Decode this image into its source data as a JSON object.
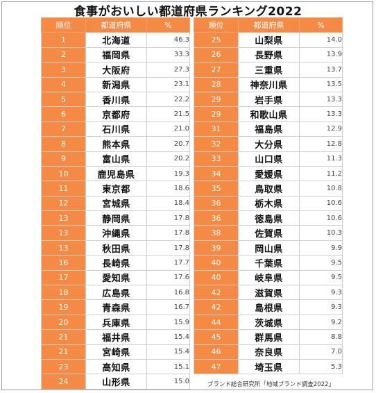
{
  "title": "食事がおいしい都道府県ランキング2022",
  "headers": {
    "rank": "順位",
    "prefecture": "都道府県",
    "percent": "%"
  },
  "left_rows": [
    {
      "rank": "1",
      "pref": "北海道",
      "pct": "46.3"
    },
    {
      "rank": "2",
      "pref": "福岡県",
      "pct": "33.3"
    },
    {
      "rank": "3",
      "pref": "大阪府",
      "pct": "27.3"
    },
    {
      "rank": "4",
      "pref": "新潟県",
      "pct": "23.1"
    },
    {
      "rank": "5",
      "pref": "香川県",
      "pct": "22.2"
    },
    {
      "rank": "6",
      "pref": "京都府",
      "pct": "21.5"
    },
    {
      "rank": "7",
      "pref": "石川県",
      "pct": "21.0"
    },
    {
      "rank": "8",
      "pref": "熊本県",
      "pct": "20.7"
    },
    {
      "rank": "9",
      "pref": "富山県",
      "pct": "20.2"
    },
    {
      "rank": "10",
      "pref": "鹿児島県",
      "pct": "19.3"
    },
    {
      "rank": "11",
      "pref": "東京都",
      "pct": "18.6"
    },
    {
      "rank": "12",
      "pref": "宮城県",
      "pct": "18.4"
    },
    {
      "rank": "13",
      "pref": "静岡県",
      "pct": "17.8"
    },
    {
      "rank": "13",
      "pref": "沖縄県",
      "pct": "17.8"
    },
    {
      "rank": "13",
      "pref": "秋田県",
      "pct": "17.8"
    },
    {
      "rank": "16",
      "pref": "長崎県",
      "pct": "17.7"
    },
    {
      "rank": "17",
      "pref": "愛知県",
      "pct": "17.6"
    },
    {
      "rank": "18",
      "pref": "広島県",
      "pct": "16.8"
    },
    {
      "rank": "19",
      "pref": "青森県",
      "pct": "16.7"
    },
    {
      "rank": "20",
      "pref": "兵庫県",
      "pct": "15.9"
    },
    {
      "rank": "21",
      "pref": "福井県",
      "pct": "15.4"
    },
    {
      "rank": "21",
      "pref": "宮崎県",
      "pct": "15.4"
    },
    {
      "rank": "23",
      "pref": "高知県",
      "pct": "15.1"
    },
    {
      "rank": "24",
      "pref": "山形県",
      "pct": "15.0"
    }
  ],
  "right_rows": [
    {
      "rank": "25",
      "pref": "山梨県",
      "pct": "14.0"
    },
    {
      "rank": "26",
      "pref": "長野県",
      "pct": "13.9"
    },
    {
      "rank": "27",
      "pref": "三重県",
      "pct": "13.7"
    },
    {
      "rank": "28",
      "pref": "神奈川県",
      "pct": "13.5"
    },
    {
      "rank": "29",
      "pref": "岩手県",
      "pct": "13.3"
    },
    {
      "rank": "29",
      "pref": "和歌山県",
      "pct": "13.3"
    },
    {
      "rank": "31",
      "pref": "福島県",
      "pct": "12.9"
    },
    {
      "rank": "32",
      "pref": "大分県",
      "pct": "12.8"
    },
    {
      "rank": "33",
      "pref": "山口県",
      "pct": "11.3"
    },
    {
      "rank": "34",
      "pref": "愛媛県",
      "pct": "11.2"
    },
    {
      "rank": "35",
      "pref": "鳥取県",
      "pct": "10.8"
    },
    {
      "rank": "36",
      "pref": "栃木県",
      "pct": "10.6"
    },
    {
      "rank": "36",
      "pref": "徳島県",
      "pct": "10.6"
    },
    {
      "rank": "38",
      "pref": "佐賀県",
      "pct": "10.3"
    },
    {
      "rank": "39",
      "pref": "岡山県",
      "pct": "9.9"
    },
    {
      "rank": "40",
      "pref": "千葉県",
      "pct": "9.5"
    },
    {
      "rank": "40",
      "pref": "岐阜県",
      "pct": "9.5"
    },
    {
      "rank": "42",
      "pref": "滋賀県",
      "pct": "9.3"
    },
    {
      "rank": "42",
      "pref": "島根県",
      "pct": "9.3"
    },
    {
      "rank": "44",
      "pref": "茨城県",
      "pct": "9.2"
    },
    {
      "rank": "45",
      "pref": "群馬県",
      "pct": "8.8"
    },
    {
      "rank": "46",
      "pref": "奈良県",
      "pct": "7.0"
    },
    {
      "rank": "47",
      "pref": "埼玉県",
      "pct": "5.3"
    }
  ],
  "source": "ブランド総合研究所「地域ブランド調査2022」",
  "colors": {
    "header_orange": "#f58a45",
    "white": "#ffffff"
  }
}
